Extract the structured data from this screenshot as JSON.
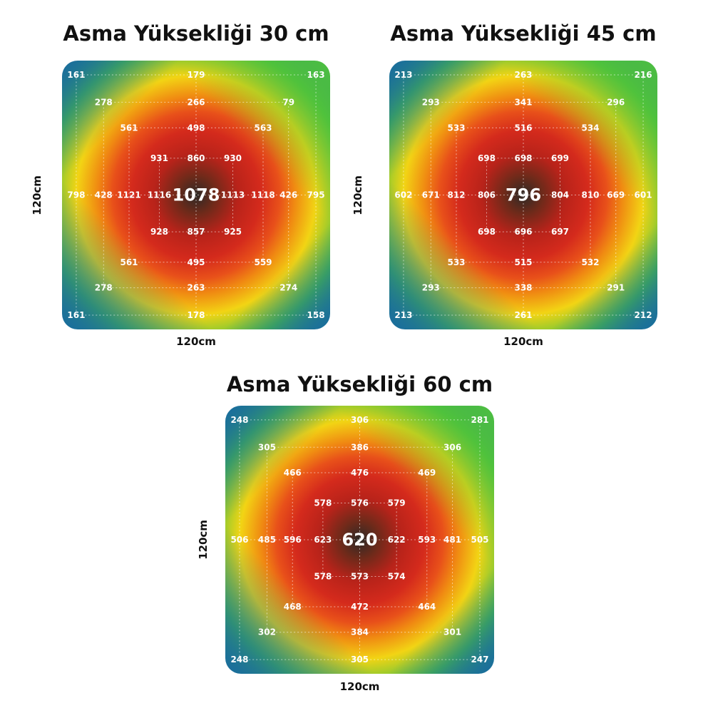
{
  "chart_data": [
    {
      "type": "heatmap",
      "title": "Asma Yüksekliği 30 cm",
      "xlabel": "120cm",
      "ylabel": "120cm",
      "center": 1078,
      "points": [
        [
          161,
          null,
          null,
          null,
          179,
          null,
          null,
          null,
          163
        ],
        [
          null,
          278,
          null,
          null,
          266,
          null,
          null,
          79,
          null
        ],
        [
          null,
          null,
          561,
          null,
          498,
          null,
          563,
          null,
          null
        ],
        [
          null,
          null,
          null,
          931,
          860,
          930,
          null,
          null,
          null
        ],
        [
          798,
          428,
          1121,
          1116,
          1078,
          1113,
          1118,
          426,
          795
        ],
        [
          null,
          null,
          null,
          928,
          857,
          925,
          null,
          null,
          null
        ],
        [
          null,
          null,
          561,
          null,
          495,
          null,
          559,
          null,
          null
        ],
        [
          null,
          278,
          null,
          null,
          263,
          null,
          null,
          274,
          null
        ],
        [
          161,
          null,
          null,
          null,
          178,
          null,
          null,
          null,
          158
        ]
      ]
    },
    {
      "type": "heatmap",
      "title": "Asma Yüksekliği 45 cm",
      "xlabel": "120cm",
      "ylabel": "120cm",
      "center": 796,
      "points": [
        [
          213,
          null,
          null,
          null,
          263,
          null,
          null,
          null,
          216
        ],
        [
          null,
          293,
          null,
          null,
          341,
          null,
          null,
          296,
          null
        ],
        [
          null,
          null,
          533,
          null,
          516,
          null,
          534,
          null,
          null
        ],
        [
          null,
          null,
          null,
          698,
          698,
          699,
          null,
          null,
          null
        ],
        [
          602,
          671,
          812,
          806,
          796,
          804,
          810,
          669,
          601
        ],
        [
          null,
          null,
          null,
          698,
          696,
          697,
          null,
          null,
          null
        ],
        [
          null,
          null,
          533,
          null,
          515,
          null,
          532,
          null,
          null
        ],
        [
          null,
          293,
          null,
          null,
          338,
          null,
          null,
          291,
          null
        ],
        [
          213,
          null,
          null,
          null,
          261,
          null,
          null,
          null,
          212
        ]
      ]
    },
    {
      "type": "heatmap",
      "title": "Asma Yüksekliği 60 cm",
      "xlabel": "120cm",
      "ylabel": "120cm",
      "center": 620,
      "points": [
        [
          248,
          null,
          null,
          null,
          306,
          null,
          null,
          null,
          281
        ],
        [
          null,
          305,
          null,
          null,
          386,
          null,
          null,
          306,
          null
        ],
        [
          null,
          null,
          466,
          null,
          476,
          null,
          469,
          null,
          null
        ],
        [
          null,
          null,
          null,
          578,
          576,
          579,
          null,
          null,
          null
        ],
        [
          506,
          485,
          596,
          623,
          620,
          622,
          593,
          481,
          505
        ],
        [
          null,
          null,
          null,
          578,
          573,
          574,
          null,
          null,
          null
        ],
        [
          null,
          null,
          468,
          null,
          472,
          null,
          464,
          null,
          null
        ],
        [
          null,
          302,
          null,
          null,
          384,
          null,
          null,
          301,
          null
        ],
        [
          248,
          null,
          null,
          null,
          305,
          null,
          null,
          null,
          247
        ]
      ]
    }
  ],
  "colors": {
    "core": "#2d2a26",
    "hot": "#d42a1c",
    "warm": "#f08a12",
    "mid": "#f2d414",
    "cool": "#4fc23c",
    "cold": "#1a6e9c",
    "value_text": "#ffffff",
    "grid_line": "#ffffff"
  }
}
